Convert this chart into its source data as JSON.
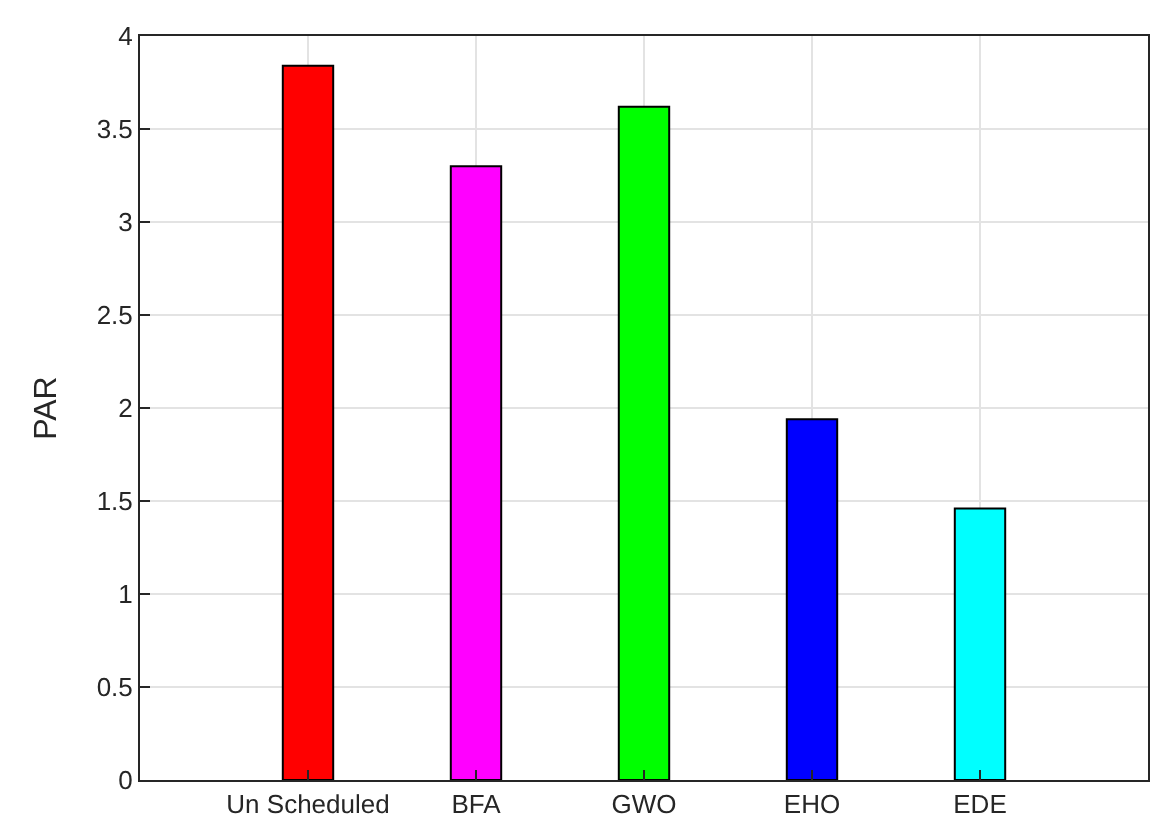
{
  "chart_data": {
    "type": "bar",
    "ylabel": "PAR",
    "categories": [
      null,
      "Un Scheduled",
      "BFA",
      "GWO",
      "EHO",
      "EDE",
      null
    ],
    "values": [
      null,
      3.84,
      3.3,
      3.62,
      1.94,
      1.46,
      null
    ],
    "colors": [
      null,
      "#ff0000",
      "#ff00ff",
      "#00ff00",
      "#0000ff",
      "#00ffff",
      null
    ],
    "ylim": [
      0,
      4
    ],
    "yticks": [
      0,
      0.5,
      1,
      1.5,
      2,
      2.5,
      3,
      3.5,
      4
    ],
    "grid": true,
    "legend": false
  }
}
